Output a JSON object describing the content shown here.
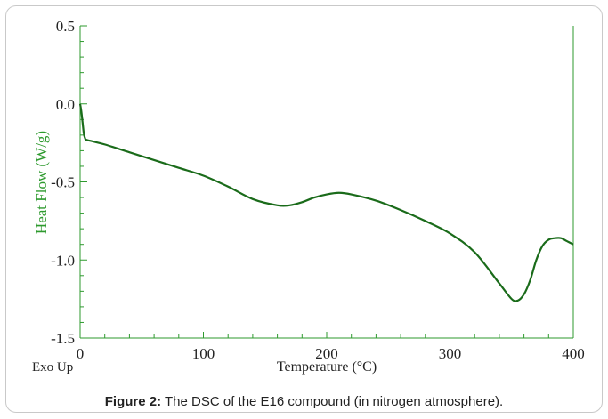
{
  "chart_data": {
    "type": "line",
    "xlabel": "Temperature (°C)",
    "ylabel": "Heat Flow (W/g)",
    "corner_note": "Exo Up",
    "xlim": [
      0,
      400
    ],
    "ylim": [
      -1.5,
      0.5
    ],
    "xticks": [
      0,
      100,
      200,
      300,
      400
    ],
    "xtick_labels": [
      "0",
      "100",
      "200",
      "300",
      "400"
    ],
    "yticks": [
      0.5,
      0.0,
      -0.5,
      -1.0,
      -1.5
    ],
    "ytick_labels": [
      "0.5",
      "0.0",
      "-0.5",
      "-1.0",
      "-1.5"
    ],
    "grid": false,
    "colors": {
      "line": "#1a6b1a",
      "axis": "#2e9a2e",
      "label": "#2e9a2e"
    },
    "series": [
      {
        "x": [
          0,
          1,
          2,
          3,
          4,
          5,
          10,
          20,
          40,
          60,
          80,
          100,
          120,
          140,
          160,
          170,
          180,
          190,
          200,
          210,
          220,
          240,
          260,
          280,
          300,
          320,
          340,
          350,
          355,
          360,
          365,
          370,
          375,
          380,
          385,
          390,
          395,
          400
        ],
        "y": [
          0.0,
          -0.05,
          -0.12,
          -0.19,
          -0.22,
          -0.23,
          -0.24,
          -0.26,
          -0.31,
          -0.36,
          -0.41,
          -0.46,
          -0.53,
          -0.61,
          -0.65,
          -0.65,
          -0.63,
          -0.6,
          -0.58,
          -0.57,
          -0.58,
          -0.62,
          -0.68,
          -0.75,
          -0.83,
          -0.95,
          -1.15,
          -1.25,
          -1.26,
          -1.22,
          -1.13,
          -1.0,
          -0.91,
          -0.87,
          -0.86,
          -0.86,
          -0.88,
          -0.9
        ]
      }
    ]
  },
  "caption": {
    "label": "Figure 2:",
    "text": " The DSC of the E16 compound (in nitrogen atmosphere)."
  }
}
